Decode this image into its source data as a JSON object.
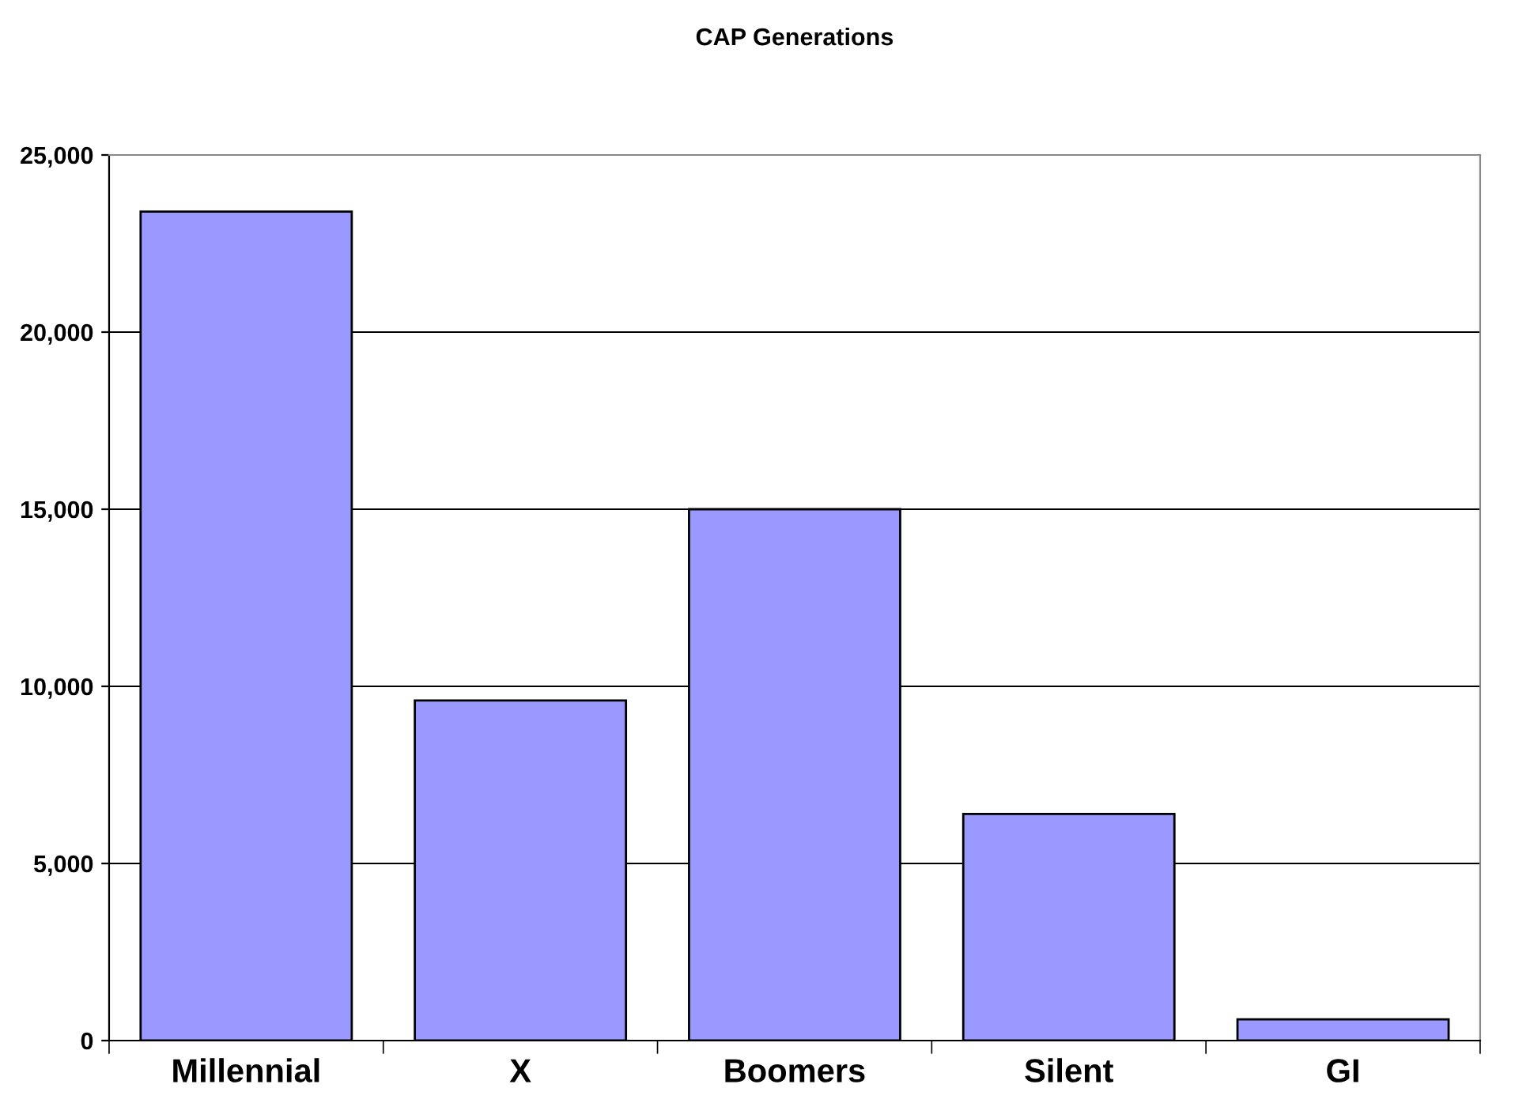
{
  "chart_data": {
    "type": "bar",
    "title": "CAP Generations",
    "categories": [
      "Millennial",
      "X",
      "Boomers",
      "Silent",
      "GI"
    ],
    "values": [
      23400,
      9600,
      15000,
      6400,
      600
    ],
    "color": "#9999ff",
    "ylim": [
      0,
      25000
    ],
    "yticks": [
      {
        "value": 0,
        "label": "0"
      },
      {
        "value": 5000,
        "label": "5,000"
      },
      {
        "value": 10000,
        "label": "10,000"
      },
      {
        "value": 15000,
        "label": "15,000"
      },
      {
        "value": 20000,
        "label": "20,000"
      },
      {
        "value": 25000,
        "label": "25,000"
      }
    ],
    "grid": "y",
    "legend": false
  }
}
